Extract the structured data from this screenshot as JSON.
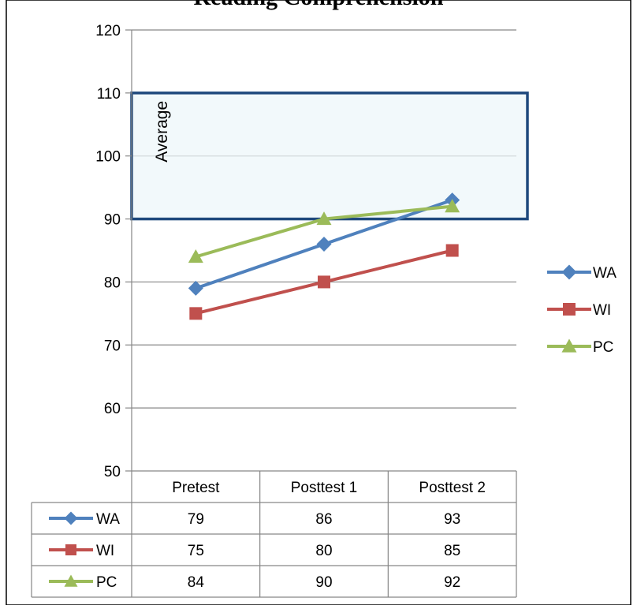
{
  "chart_data": {
    "type": "line",
    "title": "Reading Comprehension",
    "categories": [
      "Pretest",
      "Posttest 1",
      "Posttest 2"
    ],
    "series": [
      {
        "name": "WA",
        "values": [
          79,
          86,
          93
        ],
        "color": "#4F81BD",
        "marker": "diamond"
      },
      {
        "name": "WI",
        "values": [
          75,
          80,
          85
        ],
        "color": "#C0504D",
        "marker": "square"
      },
      {
        "name": "PC",
        "values": [
          84,
          90,
          92
        ],
        "color": "#9BBB59",
        "marker": "triangle"
      }
    ],
    "ylim": [
      50,
      120
    ],
    "yticks": [
      50,
      60,
      70,
      80,
      90,
      100,
      110,
      120
    ],
    "grid": true,
    "legend_position": "right",
    "data_table": true,
    "band": {
      "label": "Average",
      "from": 90,
      "to": 110,
      "fill": "#EEF7F9",
      "border": "#1F497D"
    }
  }
}
